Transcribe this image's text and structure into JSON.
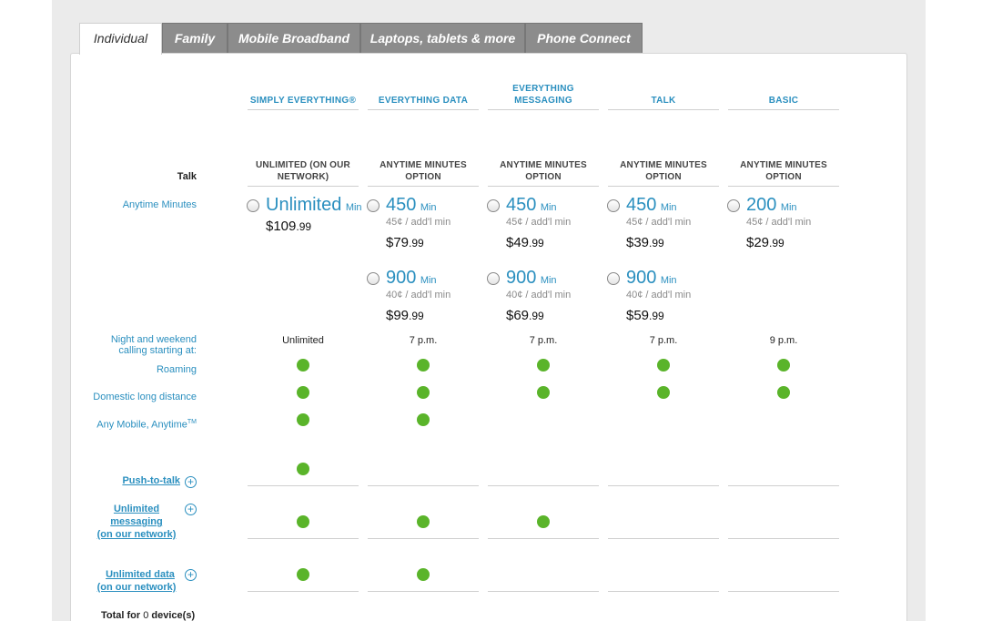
{
  "tabs": [
    {
      "label": "Individual",
      "active": true
    },
    {
      "label": "Family"
    },
    {
      "label": "Mobile Broadband"
    },
    {
      "label": "Laptops, tablets & more"
    },
    {
      "label": "Phone Connect"
    }
  ],
  "plans": [
    {
      "name": "SIMPLY EVERYTHING®",
      "option": "UNLIMITED (ON OUR NETWORK)"
    },
    {
      "name": "EVERYTHING DATA",
      "option": "ANYTIME MINUTES OPTION"
    },
    {
      "name": "EVERYTHING MESSAGING",
      "option": "ANYTIME MINUTES OPTION"
    },
    {
      "name": "TALK",
      "option": "ANYTIME MINUTES OPTION"
    },
    {
      "name": "BASIC",
      "option": "ANYTIME MINUTES OPTION"
    }
  ],
  "labels": {
    "talk": "Talk",
    "anytime_minutes": "Anytime Minutes",
    "night_weekend": "Night and weekend calling starting at:",
    "roaming": "Roaming",
    "domestic_ld": "Domestic long distance",
    "any_mobile": "Any Mobile, Anytime",
    "any_mobile_tm": "TM",
    "push_to_talk": "Push-to-talk",
    "unlimited_messaging": "Unlimited messaging",
    "on_network": "(on our network)",
    "unlimited_data": "Unlimited data",
    "total_prefix": "Total for ",
    "total_count": "0",
    "total_suffix": " device(s)",
    "plus_symbol": "+"
  },
  "options_row1": [
    {
      "minutes": "Unlimited",
      "unit": "Min",
      "rate": "",
      "dollars": "$109",
      "cents": ".99"
    },
    {
      "minutes": "450",
      "unit": "Min",
      "rate": "45¢ / add'l min",
      "dollars": "$79",
      "cents": ".99"
    },
    {
      "minutes": "450",
      "unit": "Min",
      "rate": "45¢ / add'l min",
      "dollars": "$49",
      "cents": ".99"
    },
    {
      "minutes": "450",
      "unit": "Min",
      "rate": "45¢ / add'l min",
      "dollars": "$39",
      "cents": ".99"
    },
    {
      "minutes": "200",
      "unit": "Min",
      "rate": "45¢ / add'l min",
      "dollars": "$29",
      "cents": ".99"
    }
  ],
  "options_row2": [
    {
      "minutes": "900",
      "unit": "Min",
      "rate": "40¢ / add'l min",
      "dollars": "$99",
      "cents": ".99"
    },
    {
      "minutes": "900",
      "unit": "Min",
      "rate": "40¢ / add'l min",
      "dollars": "$69",
      "cents": ".99"
    },
    {
      "minutes": "900",
      "unit": "Min",
      "rate": "40¢ / add'l min",
      "dollars": "$59",
      "cents": ".99"
    }
  ],
  "night_weekend_values": [
    "Unlimited",
    "7 p.m.",
    "7 p.m.",
    "7 p.m.",
    "9 p.m."
  ],
  "colors": {
    "accent": "#2a8fbf",
    "included_dot": "#5ab42a",
    "tab_inactive": "#8c8c8c"
  }
}
